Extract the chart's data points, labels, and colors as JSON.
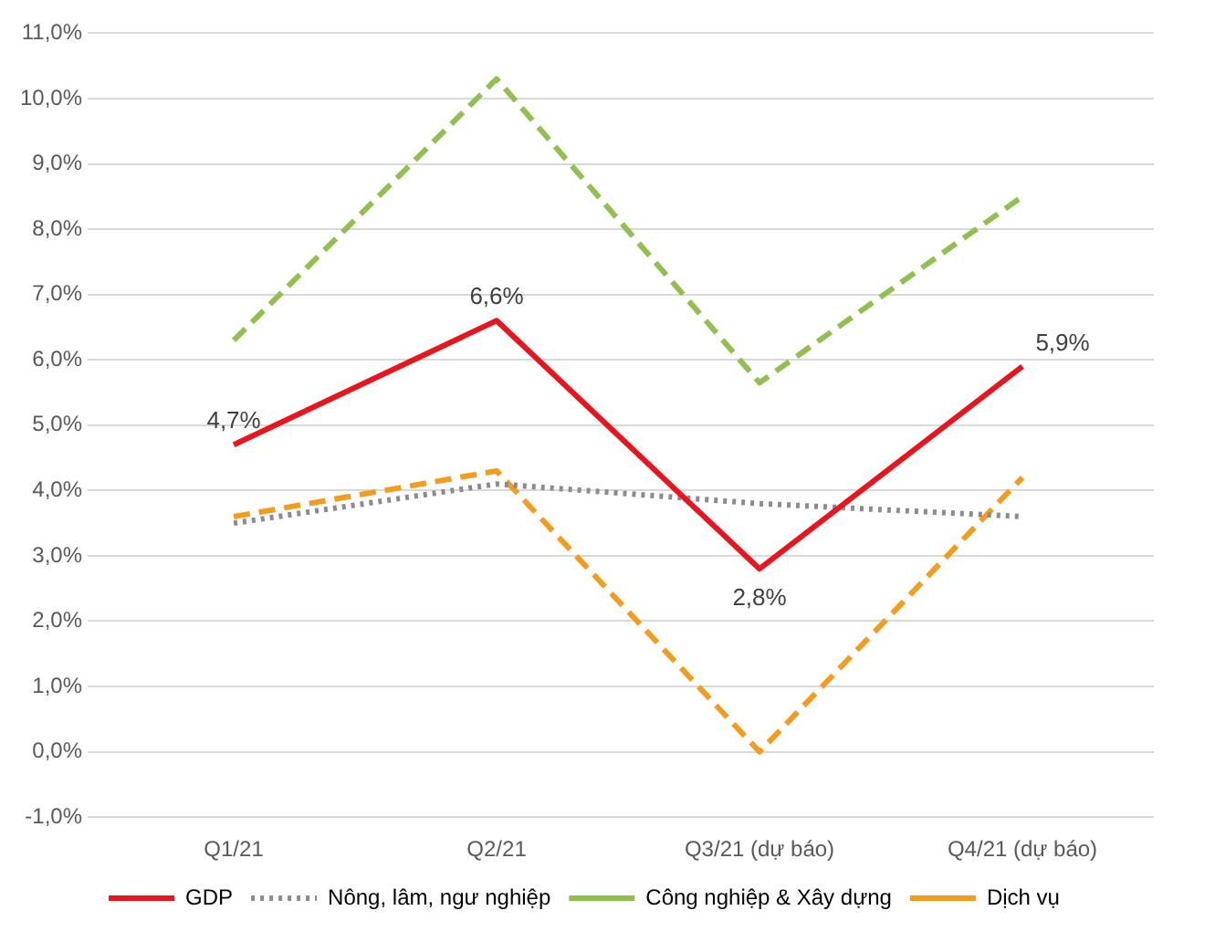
{
  "chart_data": {
    "type": "line",
    "categories": [
      "Q1/21",
      "Q2/21",
      "Q3/21 (dự báo)",
      "Q4/21 (dự báo)"
    ],
    "series": [
      {
        "name": "GDP",
        "color": "#e8141e",
        "line_style": "solid",
        "values": [
          4.7,
          6.6,
          2.8,
          5.9
        ],
        "value_labels": [
          "4,7%",
          "6,6%",
          "2,8%",
          "5,9%"
        ]
      },
      {
        "name": "Nông, lâm, ngư nghiệp",
        "color": "#8c8c8c",
        "line_style": "dotted",
        "values": [
          3.5,
          4.1,
          3.8,
          3.6
        ]
      },
      {
        "name": "Công nghiệp & Xây dựng",
        "color": "#92c050",
        "line_style": "dashed",
        "values": [
          6.3,
          10.3,
          5.65,
          8.5
        ]
      },
      {
        "name": "Dịch vụ",
        "color": "#f39c1e",
        "line_style": "dashed",
        "values": [
          3.6,
          4.3,
          0.0,
          4.2
        ]
      }
    ],
    "ylim": [
      -1,
      11
    ],
    "yticks": [
      {
        "value": -1,
        "label": "-1,0%"
      },
      {
        "value": 0,
        "label": "0,0%"
      },
      {
        "value": 1,
        "label": "1,0%"
      },
      {
        "value": 2,
        "label": "2,0%"
      },
      {
        "value": 3,
        "label": "3,0%"
      },
      {
        "value": 4,
        "label": "4,0%"
      },
      {
        "value": 5,
        "label": "5,0%"
      },
      {
        "value": 6,
        "label": "6,0%"
      },
      {
        "value": 7,
        "label": "7,0%"
      },
      {
        "value": 8,
        "label": "8,0%"
      },
      {
        "value": 9,
        "label": "9,0%"
      },
      {
        "value": 10,
        "label": "10,0%"
      },
      {
        "value": 11,
        "label": "11,0%"
      }
    ],
    "grid": "y",
    "legend": "bottom",
    "marker": "none"
  }
}
